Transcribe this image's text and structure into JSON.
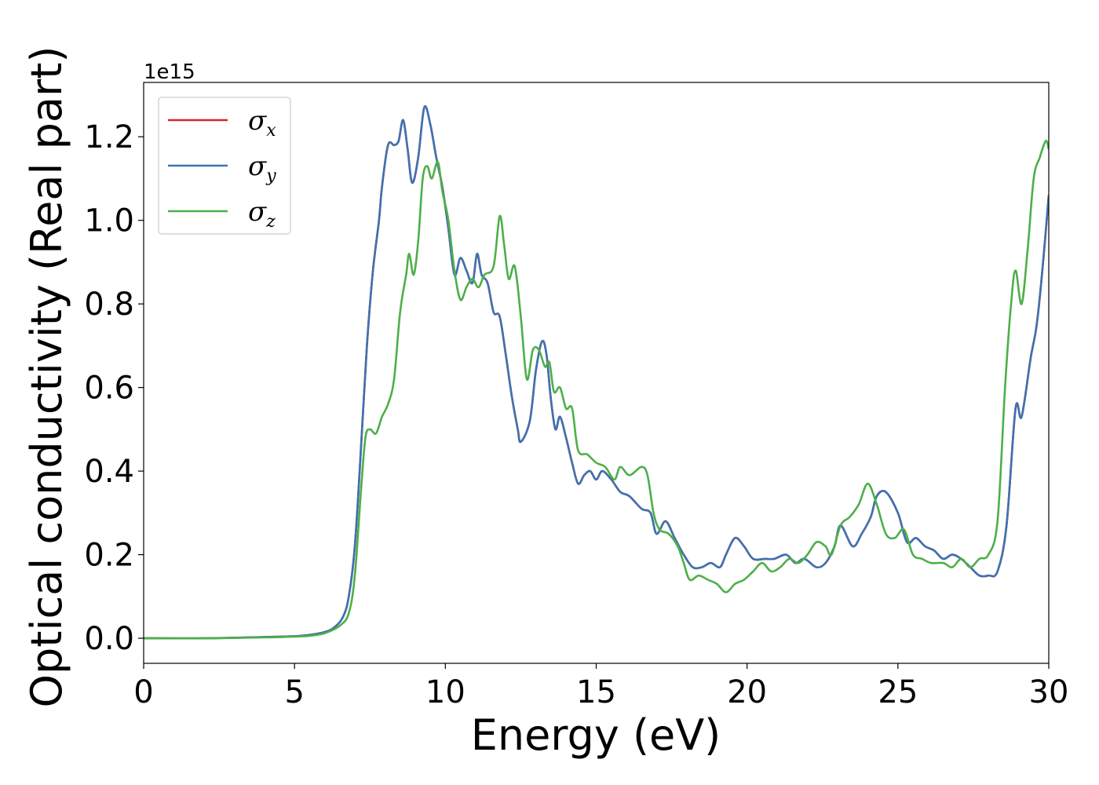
{
  "chart_data": {
    "type": "line",
    "xlabel": "Energy (eV)",
    "ylabel": "Optical conductivity (Real part)",
    "y_offset_label": "1e15",
    "xlim": [
      0,
      30
    ],
    "ylim": [
      -0.06,
      1.33
    ],
    "x_ticks": [
      0,
      5,
      10,
      15,
      20,
      25,
      30
    ],
    "x_tick_labels": [
      "0",
      "5",
      "10",
      "15",
      "20",
      "25",
      "30"
    ],
    "y_ticks": [
      0.0,
      0.2,
      0.4,
      0.6,
      0.8,
      1.0,
      1.2
    ],
    "y_tick_labels": [
      "0.0",
      "0.2",
      "0.4",
      "0.6",
      "0.8",
      "1.0",
      "1.2"
    ],
    "grid": false,
    "legend_position": "top-left",
    "series": [
      {
        "name": "σx",
        "symbol": "σ",
        "subscript": "x",
        "color": "#d62728",
        "points": [
          [
            0,
            0
          ],
          [
            2,
            0
          ],
          [
            4,
            0.003
          ],
          [
            5,
            0.005
          ],
          [
            5.5,
            0.008
          ],
          [
            6,
            0.015
          ],
          [
            6.3,
            0.025
          ],
          [
            6.6,
            0.05
          ],
          [
            6.8,
            0.1
          ],
          [
            7,
            0.22
          ],
          [
            7.2,
            0.45
          ],
          [
            7.4,
            0.7
          ],
          [
            7.6,
            0.88
          ],
          [
            7.8,
            1.0
          ],
          [
            7.9,
            1.08
          ],
          [
            8.1,
            1.18
          ],
          [
            8.3,
            1.18
          ],
          [
            8.45,
            1.19
          ],
          [
            8.6,
            1.24
          ],
          [
            8.75,
            1.17
          ],
          [
            8.9,
            1.09
          ],
          [
            9.1,
            1.15
          ],
          [
            9.3,
            1.27
          ],
          [
            9.5,
            1.23
          ],
          [
            9.7,
            1.15
          ],
          [
            9.9,
            1.08
          ],
          [
            10.1,
            0.98
          ],
          [
            10.3,
            0.87
          ],
          [
            10.5,
            0.91
          ],
          [
            10.7,
            0.88
          ],
          [
            10.9,
            0.85
          ],
          [
            11.05,
            0.92
          ],
          [
            11.2,
            0.87
          ],
          [
            11.4,
            0.85
          ],
          [
            11.6,
            0.78
          ],
          [
            11.8,
            0.77
          ],
          [
            12,
            0.68
          ],
          [
            12.2,
            0.58
          ],
          [
            12.4,
            0.5
          ],
          [
            12.5,
            0.47
          ],
          [
            12.8,
            0.52
          ],
          [
            13,
            0.64
          ],
          [
            13.2,
            0.71
          ],
          [
            13.35,
            0.68
          ],
          [
            13.5,
            0.57
          ],
          [
            13.65,
            0.5
          ],
          [
            13.8,
            0.53
          ],
          [
            14,
            0.48
          ],
          [
            14.2,
            0.42
          ],
          [
            14.4,
            0.37
          ],
          [
            14.6,
            0.39
          ],
          [
            14.8,
            0.4
          ],
          [
            15,
            0.38
          ],
          [
            15.2,
            0.4
          ],
          [
            15.5,
            0.38
          ],
          [
            15.8,
            0.35
          ],
          [
            16.1,
            0.34
          ],
          [
            16.5,
            0.31
          ],
          [
            16.8,
            0.3
          ],
          [
            17,
            0.25
          ],
          [
            17.3,
            0.28
          ],
          [
            17.6,
            0.24
          ],
          [
            17.9,
            0.2
          ],
          [
            18.2,
            0.17
          ],
          [
            18.5,
            0.17
          ],
          [
            18.8,
            0.18
          ],
          [
            19.1,
            0.17
          ],
          [
            19.3,
            0.2
          ],
          [
            19.6,
            0.24
          ],
          [
            19.9,
            0.22
          ],
          [
            20.2,
            0.19
          ],
          [
            20.6,
            0.19
          ],
          [
            20.9,
            0.19
          ],
          [
            21.3,
            0.2
          ],
          [
            21.6,
            0.18
          ],
          [
            21.9,
            0.19
          ],
          [
            22.3,
            0.17
          ],
          [
            22.6,
            0.18
          ],
          [
            22.9,
            0.22
          ],
          [
            23.1,
            0.27
          ],
          [
            23.5,
            0.22
          ],
          [
            23.8,
            0.25
          ],
          [
            24.1,
            0.29
          ],
          [
            24.3,
            0.34
          ],
          [
            24.6,
            0.35
          ],
          [
            25,
            0.3
          ],
          [
            25.3,
            0.23
          ],
          [
            25.6,
            0.24
          ],
          [
            25.9,
            0.22
          ],
          [
            26.2,
            0.21
          ],
          [
            26.5,
            0.19
          ],
          [
            26.8,
            0.2
          ],
          [
            27.1,
            0.19
          ],
          [
            27.4,
            0.17
          ],
          [
            27.7,
            0.15
          ],
          [
            28,
            0.15
          ],
          [
            28.3,
            0.16
          ],
          [
            28.6,
            0.27
          ],
          [
            28.9,
            0.55
          ],
          [
            29.1,
            0.53
          ],
          [
            29.4,
            0.67
          ],
          [
            29.6,
            0.75
          ],
          [
            29.8,
            0.89
          ],
          [
            30,
            1.06
          ]
        ]
      },
      {
        "name": "σy",
        "symbol": "σ",
        "subscript": "y",
        "color": "#3d72b2",
        "points": [
          [
            0,
            0
          ],
          [
            2,
            0
          ],
          [
            4,
            0.003
          ],
          [
            5,
            0.005
          ],
          [
            5.5,
            0.008
          ],
          [
            6,
            0.015
          ],
          [
            6.3,
            0.025
          ],
          [
            6.6,
            0.05
          ],
          [
            6.8,
            0.1
          ],
          [
            7,
            0.22
          ],
          [
            7.2,
            0.45
          ],
          [
            7.4,
            0.7
          ],
          [
            7.6,
            0.88
          ],
          [
            7.8,
            1.0
          ],
          [
            7.9,
            1.08
          ],
          [
            8.1,
            1.18
          ],
          [
            8.3,
            1.18
          ],
          [
            8.45,
            1.19
          ],
          [
            8.6,
            1.24
          ],
          [
            8.75,
            1.17
          ],
          [
            8.9,
            1.09
          ],
          [
            9.1,
            1.15
          ],
          [
            9.3,
            1.27
          ],
          [
            9.5,
            1.23
          ],
          [
            9.7,
            1.15
          ],
          [
            9.9,
            1.08
          ],
          [
            10.1,
            0.98
          ],
          [
            10.3,
            0.87
          ],
          [
            10.5,
            0.91
          ],
          [
            10.7,
            0.88
          ],
          [
            10.9,
            0.85
          ],
          [
            11.05,
            0.92
          ],
          [
            11.2,
            0.87
          ],
          [
            11.4,
            0.85
          ],
          [
            11.6,
            0.78
          ],
          [
            11.8,
            0.77
          ],
          [
            12,
            0.68
          ],
          [
            12.2,
            0.58
          ],
          [
            12.4,
            0.5
          ],
          [
            12.5,
            0.47
          ],
          [
            12.8,
            0.52
          ],
          [
            13,
            0.64
          ],
          [
            13.2,
            0.71
          ],
          [
            13.35,
            0.68
          ],
          [
            13.5,
            0.57
          ],
          [
            13.65,
            0.5
          ],
          [
            13.8,
            0.53
          ],
          [
            14,
            0.48
          ],
          [
            14.2,
            0.42
          ],
          [
            14.4,
            0.37
          ],
          [
            14.6,
            0.39
          ],
          [
            14.8,
            0.4
          ],
          [
            15,
            0.38
          ],
          [
            15.2,
            0.4
          ],
          [
            15.5,
            0.38
          ],
          [
            15.8,
            0.35
          ],
          [
            16.1,
            0.34
          ],
          [
            16.5,
            0.31
          ],
          [
            16.8,
            0.3
          ],
          [
            17,
            0.25
          ],
          [
            17.3,
            0.28
          ],
          [
            17.6,
            0.24
          ],
          [
            17.9,
            0.2
          ],
          [
            18.2,
            0.17
          ],
          [
            18.5,
            0.17
          ],
          [
            18.8,
            0.18
          ],
          [
            19.1,
            0.17
          ],
          [
            19.3,
            0.2
          ],
          [
            19.6,
            0.24
          ],
          [
            19.9,
            0.22
          ],
          [
            20.2,
            0.19
          ],
          [
            20.6,
            0.19
          ],
          [
            20.9,
            0.19
          ],
          [
            21.3,
            0.2
          ],
          [
            21.6,
            0.18
          ],
          [
            21.9,
            0.19
          ],
          [
            22.3,
            0.17
          ],
          [
            22.6,
            0.18
          ],
          [
            22.9,
            0.22
          ],
          [
            23.1,
            0.27
          ],
          [
            23.5,
            0.22
          ],
          [
            23.8,
            0.25
          ],
          [
            24.1,
            0.29
          ],
          [
            24.3,
            0.34
          ],
          [
            24.6,
            0.35
          ],
          [
            25,
            0.3
          ],
          [
            25.3,
            0.23
          ],
          [
            25.6,
            0.24
          ],
          [
            25.9,
            0.22
          ],
          [
            26.2,
            0.21
          ],
          [
            26.5,
            0.19
          ],
          [
            26.8,
            0.2
          ],
          [
            27.1,
            0.19
          ],
          [
            27.4,
            0.17
          ],
          [
            27.7,
            0.15
          ],
          [
            28,
            0.15
          ],
          [
            28.3,
            0.16
          ],
          [
            28.6,
            0.27
          ],
          [
            28.9,
            0.55
          ],
          [
            29.1,
            0.53
          ],
          [
            29.4,
            0.67
          ],
          [
            29.6,
            0.75
          ],
          [
            29.8,
            0.89
          ],
          [
            30,
            1.06
          ]
        ]
      },
      {
        "name": "σz",
        "symbol": "σ",
        "subscript": "z",
        "color": "#4daf4a",
        "points": [
          [
            0,
            0
          ],
          [
            2,
            0
          ],
          [
            4,
            0.002
          ],
          [
            5,
            0.004
          ],
          [
            5.5,
            0.006
          ],
          [
            6,
            0.012
          ],
          [
            6.5,
            0.03
          ],
          [
            6.8,
            0.06
          ],
          [
            7,
            0.15
          ],
          [
            7.2,
            0.35
          ],
          [
            7.35,
            0.48
          ],
          [
            7.5,
            0.5
          ],
          [
            7.7,
            0.49
          ],
          [
            7.9,
            0.53
          ],
          [
            8.1,
            0.56
          ],
          [
            8.3,
            0.62
          ],
          [
            8.5,
            0.78
          ],
          [
            8.7,
            0.87
          ],
          [
            8.8,
            0.92
          ],
          [
            8.95,
            0.87
          ],
          [
            9.1,
            0.95
          ],
          [
            9.25,
            1.1
          ],
          [
            9.4,
            1.13
          ],
          [
            9.55,
            1.1
          ],
          [
            9.75,
            1.14
          ],
          [
            9.9,
            1.07
          ],
          [
            10.1,
            1.0
          ],
          [
            10.3,
            0.88
          ],
          [
            10.5,
            0.81
          ],
          [
            10.7,
            0.84
          ],
          [
            10.9,
            0.86
          ],
          [
            11.1,
            0.84
          ],
          [
            11.3,
            0.87
          ],
          [
            11.6,
            0.89
          ],
          [
            11.8,
            1.01
          ],
          [
            11.95,
            0.94
          ],
          [
            12.1,
            0.86
          ],
          [
            12.3,
            0.89
          ],
          [
            12.5,
            0.77
          ],
          [
            12.7,
            0.62
          ],
          [
            12.9,
            0.69
          ],
          [
            13.1,
            0.69
          ],
          [
            13.3,
            0.65
          ],
          [
            13.45,
            0.66
          ],
          [
            13.6,
            0.59
          ],
          [
            13.8,
            0.6
          ],
          [
            14,
            0.55
          ],
          [
            14.2,
            0.55
          ],
          [
            14.4,
            0.45
          ],
          [
            14.7,
            0.44
          ],
          [
            15,
            0.42
          ],
          [
            15.3,
            0.41
          ],
          [
            15.6,
            0.38
          ],
          [
            15.8,
            0.41
          ],
          [
            16.1,
            0.39
          ],
          [
            16.5,
            0.41
          ],
          [
            16.7,
            0.39
          ],
          [
            16.9,
            0.3
          ],
          [
            17.1,
            0.26
          ],
          [
            17.4,
            0.25
          ],
          [
            17.7,
            0.22
          ],
          [
            17.9,
            0.18
          ],
          [
            18.1,
            0.14
          ],
          [
            18.4,
            0.15
          ],
          [
            18.7,
            0.14
          ],
          [
            19,
            0.13
          ],
          [
            19.3,
            0.11
          ],
          [
            19.6,
            0.13
          ],
          [
            19.9,
            0.14
          ],
          [
            20.2,
            0.16
          ],
          [
            20.5,
            0.18
          ],
          [
            20.8,
            0.16
          ],
          [
            21.1,
            0.17
          ],
          [
            21.4,
            0.19
          ],
          [
            21.7,
            0.18
          ],
          [
            22,
            0.2
          ],
          [
            22.3,
            0.23
          ],
          [
            22.6,
            0.22
          ],
          [
            22.8,
            0.2
          ],
          [
            23.1,
            0.27
          ],
          [
            23.4,
            0.29
          ],
          [
            23.7,
            0.32
          ],
          [
            24,
            0.37
          ],
          [
            24.3,
            0.32
          ],
          [
            24.6,
            0.25
          ],
          [
            24.9,
            0.24
          ],
          [
            25.2,
            0.26
          ],
          [
            25.5,
            0.2
          ],
          [
            25.8,
            0.19
          ],
          [
            26.1,
            0.18
          ],
          [
            26.5,
            0.18
          ],
          [
            26.8,
            0.17
          ],
          [
            27.1,
            0.19
          ],
          [
            27.4,
            0.17
          ],
          [
            27.7,
            0.19
          ],
          [
            28,
            0.2
          ],
          [
            28.3,
            0.28
          ],
          [
            28.55,
            0.6
          ],
          [
            28.75,
            0.8
          ],
          [
            28.9,
            0.88
          ],
          [
            29.1,
            0.8
          ],
          [
            29.3,
            0.93
          ],
          [
            29.5,
            1.1
          ],
          [
            29.7,
            1.15
          ],
          [
            29.9,
            1.19
          ],
          [
            30,
            1.17
          ]
        ]
      }
    ]
  }
}
